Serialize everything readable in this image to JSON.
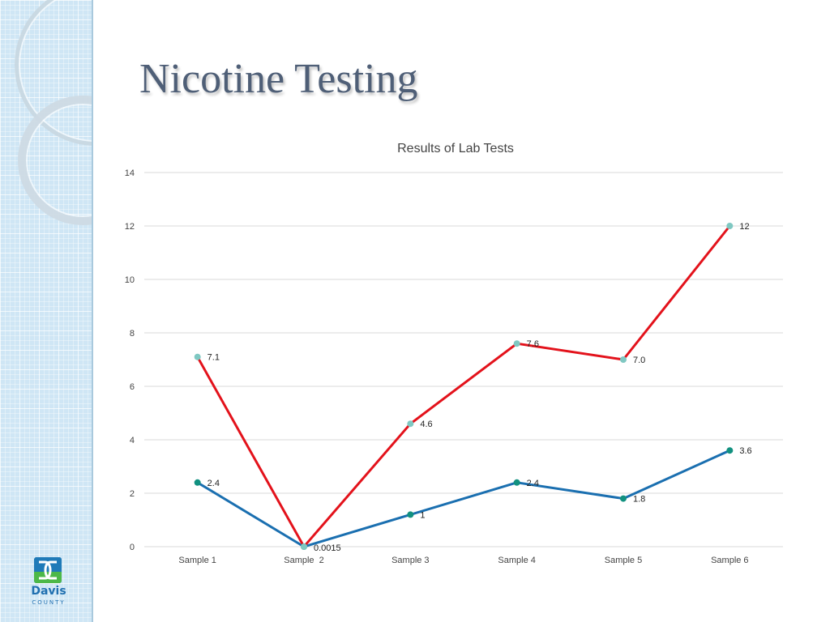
{
  "slide": {
    "title": "Nicotine Testing",
    "logo_word": "Davis",
    "logo_sub": "COUNTY"
  },
  "colors": {
    "title": "#4f5f77",
    "series_red": "#e3121b",
    "series_blue": "#1a6fb0",
    "marker_red": "#7fc8c2",
    "marker_blue": "#129180"
  },
  "chart_data": {
    "type": "line",
    "title": "Results of Lab Tests",
    "categories": [
      "Sample 1",
      "Sample  2",
      "Sample 3",
      "Sample 4",
      "Sample 5",
      "Sample 6"
    ],
    "ylim": [
      0,
      14
    ],
    "yticks": [
      0,
      2,
      4,
      6,
      8,
      10,
      12,
      14
    ],
    "grid": true,
    "series": [
      {
        "values": [
          7.1,
          0.0015,
          4.6,
          7.6,
          7.0,
          12
        ],
        "labels": [
          "7.1",
          "0.0015",
          "4.6",
          "7.6",
          "7.0",
          "12"
        ]
      },
      {
        "values": [
          2.4,
          0,
          1.2,
          2.4,
          1.8,
          3.6
        ],
        "labels": [
          "2.4",
          "",
          "1",
          "2.4",
          "1.8",
          "3.6"
        ]
      }
    ]
  }
}
